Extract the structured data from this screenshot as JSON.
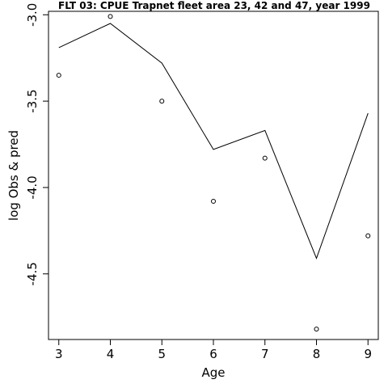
{
  "chart_data": {
    "type": "line",
    "title": "FLT 03: CPUE Trapnet fleet area 23, 42 and 47, year 1999",
    "xlabel": "Age",
    "ylabel": "log Obs & pred",
    "xlim": [
      2.8,
      9.2
    ],
    "ylim": [
      -4.88,
      -2.98
    ],
    "x_ticks": [
      3,
      4,
      5,
      6,
      7,
      8,
      9
    ],
    "x_tick_labels": [
      "3",
      "4",
      "5",
      "6",
      "7",
      "8",
      "9"
    ],
    "y_ticks": [
      -3.0,
      -3.5,
      -4.0,
      -4.5
    ],
    "y_tick_labels": [
      "-3.0",
      "-3.5",
      "-4.0",
      "-4.5"
    ],
    "grid": false,
    "legend": "none",
    "series": [
      {
        "type": "line",
        "x": [
          3,
          4,
          5,
          6,
          7,
          8,
          9
        ],
        "values": [
          -3.19,
          -3.05,
          -3.28,
          -3.78,
          -3.67,
          -4.41,
          -3.57
        ],
        "color": "#000000"
      },
      {
        "type": "scatter",
        "marker": "open-circle",
        "x": [
          3,
          4,
          5,
          6,
          7,
          8,
          9
        ],
        "values": [
          -3.35,
          -3.01,
          -3.5,
          -4.08,
          -3.83,
          -4.82,
          -4.28
        ],
        "color": "#000000"
      }
    ]
  }
}
